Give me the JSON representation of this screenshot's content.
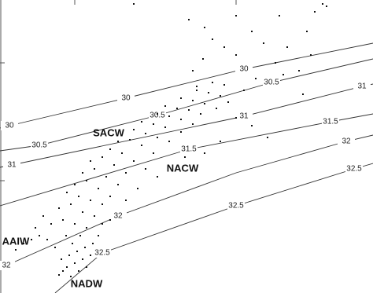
{
  "chart_data": {
    "type": "scatter",
    "xlim": [
      0,
      474
    ],
    "ylim": [
      0,
      373
    ],
    "xticks": [
      95,
      300
    ],
    "yticks": [
      143,
      293
    ],
    "color": "#111111",
    "x": [
      75,
      80,
      85,
      90,
      95,
      100,
      105,
      110,
      88,
      98,
      115,
      78,
      92,
      108,
      118,
      84,
      102,
      70,
      60,
      50,
      40,
      30,
      20,
      45,
      65,
      80,
      95,
      110,
      55,
      75,
      90,
      105,
      120,
      85,
      100,
      115,
      130,
      95,
      110,
      125,
      140,
      105,
      120,
      135,
      150,
      115,
      130,
      145,
      160,
      140,
      155,
      170,
      185,
      150,
      165,
      180,
      195,
      170,
      185,
      200,
      215,
      180,
      195,
      210,
      230,
      200,
      215,
      230,
      245,
      210,
      225,
      240,
      255,
      230,
      245,
      260,
      275,
      250,
      265,
      280,
      290,
      270,
      285,
      300,
      320,
      340,
      260,
      280,
      235,
      200,
      175,
      160,
      140,
      125,
      130,
      245,
      258,
      270,
      285,
      300,
      320,
      335,
      350,
      365,
      380,
      390,
      400,
      410,
      355,
      300,
      240,
      260,
      325,
      360,
      385,
      310,
      250,
      395,
      415,
      170
    ],
    "values": [
      23,
      28,
      33,
      21,
      38,
      28,
      43,
      33,
      48,
      53,
      48,
      43,
      63,
      58,
      63,
      73,
      73,
      58,
      68,
      73,
      68,
      63,
      55,
      83,
      88,
      93,
      88,
      83,
      98,
      108,
      113,
      103,
      98,
      128,
      123,
      118,
      113,
      138,
      143,
      133,
      123,
      153,
      158,
      148,
      138,
      168,
      173,
      163,
      153,
      183,
      178,
      168,
      158,
      193,
      195,
      188,
      178,
      208,
      203,
      198,
      193,
      218,
      215,
      211,
      205,
      228,
      225,
      221,
      215,
      238,
      235,
      233,
      228,
      248,
      245,
      241,
      235,
      258,
      255,
      251,
      243,
      268,
      265,
      223,
      213,
      198,
      178,
      193,
      173,
      148,
      133,
      118,
      93,
      73,
      88,
      283,
      298,
      323,
      313,
      303,
      333,
      318,
      293,
      313,
      283,
      333,
      358,
      368,
      353,
      353,
      348,
      338,
      273,
      278,
      253,
      258,
      263,
      303,
      365,
      368
    ],
    "contours": [
      {
        "level": 30,
        "x": [
          0,
          12,
          160,
          310,
          474
        ],
        "y": [
          210,
          213,
          248,
          285,
          318
        ]
      },
      {
        "level": 30.5,
        "x": [
          0,
          50,
          200,
          345,
          474
        ],
        "y": [
          181,
          188,
          226,
          268,
          298
        ]
      },
      {
        "level": 31,
        "x": [
          0,
          15,
          310,
          460,
          474
        ],
        "y": [
          160,
          163,
          225,
          263,
          266
        ]
      },
      {
        "level": 31.5,
        "x": [
          0,
          240,
          420,
          474
        ],
        "y": [
          111,
          183,
          218,
          228
        ]
      },
      {
        "level": 32,
        "x": [
          0,
          8,
          150,
          300,
          440,
          474
        ],
        "y": [
          31,
          35,
          98,
          153,
          193,
          201
        ]
      },
      {
        "level": 32.5,
        "x": [
          70,
          130,
          300,
          450,
          474
        ],
        "y": [
          0,
          51,
          111,
          158,
          165
        ]
      }
    ],
    "annotations": [
      "SACW",
      "NACW",
      "AAIW",
      "NADW"
    ]
  }
}
